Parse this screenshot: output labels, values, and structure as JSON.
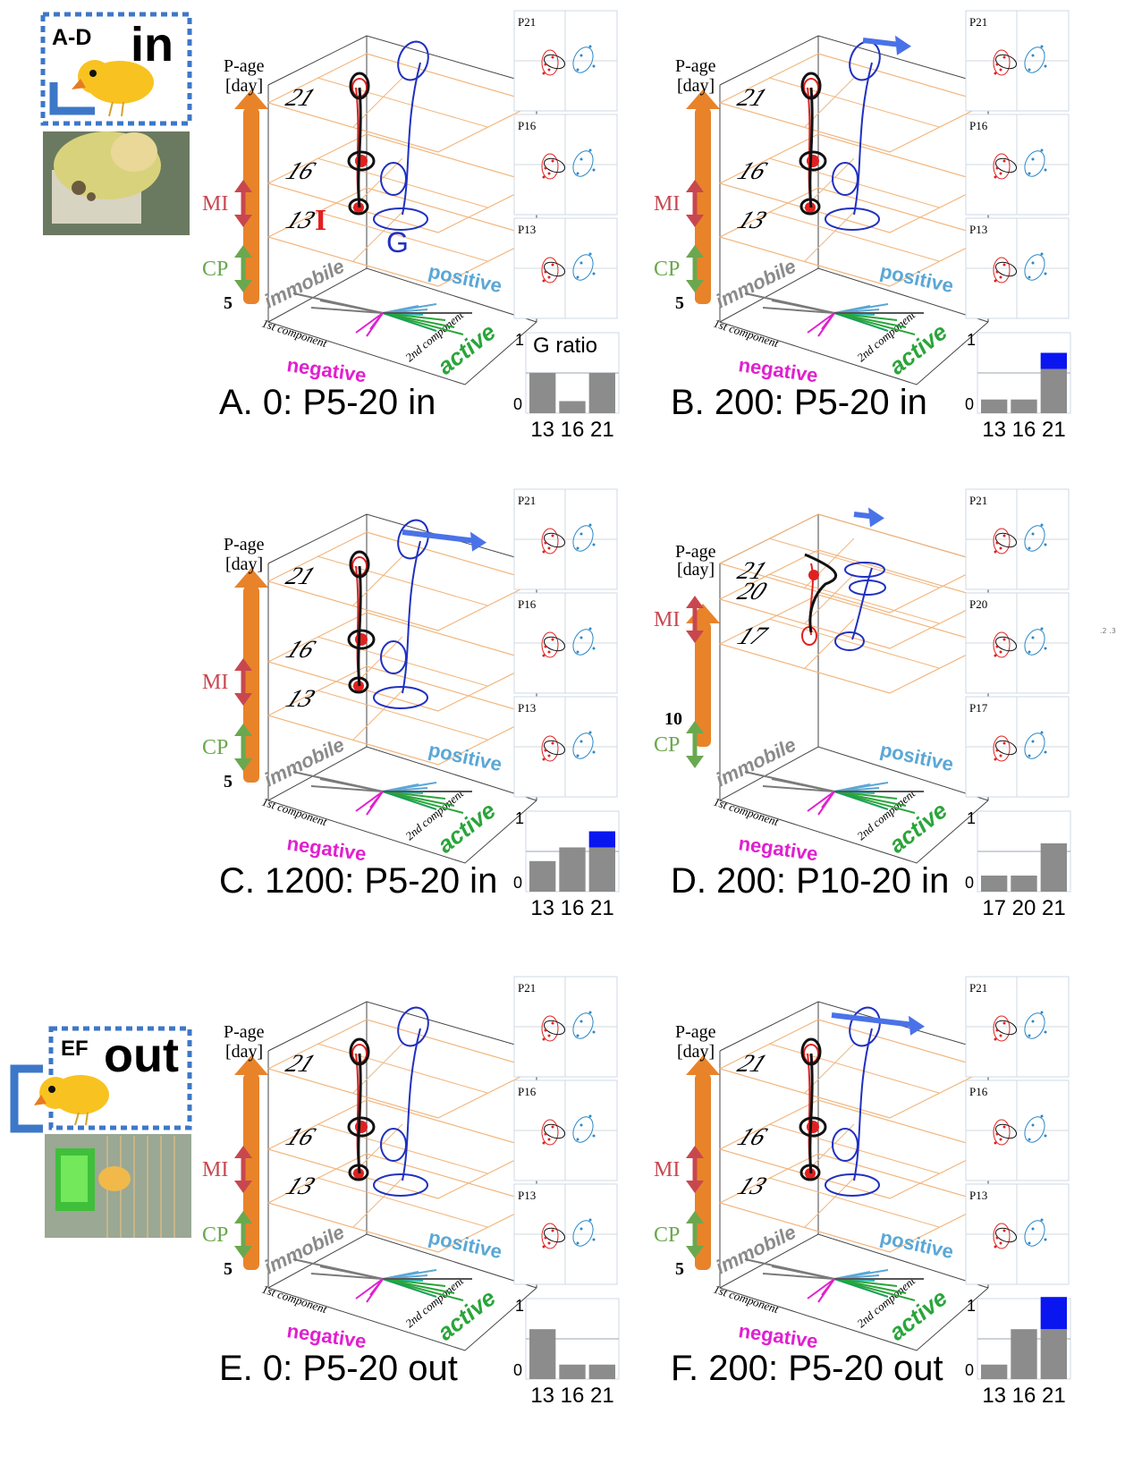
{
  "legend_in": {
    "tag": "A-D",
    "word": "in"
  },
  "legend_out": {
    "tag": "EF",
    "word": "out"
  },
  "common": {
    "page_age": "P-age",
    "day": "[day]",
    "mi": "MI",
    "cp": "CP",
    "immobile": "immobile",
    "positive": "positive",
    "negative": "negative",
    "active": "active",
    "first_component": "1st component",
    "second_component": "2nd component",
    "one": "1",
    "zero": "0",
    "g_ratio": "G ratio",
    "label_i": "I",
    "label_g": "G"
  },
  "colors": {
    "orange": "#e8832a",
    "grid": "#f2b57c",
    "individual": "#e02020",
    "group": "#2030c0",
    "trajectory": "#111111",
    "arrow": "#4a72e8",
    "positive": "#5aa7d6",
    "active": "#2aa53a",
    "negative": "#e020d0",
    "mi": "#c8474f",
    "cp": "#6aa84f",
    "bar_gray": "#8c8c8c",
    "bar_blue": "#0a16f0"
  },
  "chart_data": [
    {
      "panel": "A",
      "title": "A.   0: P5-20 in",
      "ages": [
        "21",
        "16",
        "13"
      ],
      "base_age": "5",
      "side_labels": [
        "P21",
        "P16",
        "P13"
      ],
      "type": "bar",
      "categories": [
        "13",
        "16",
        "21"
      ],
      "values": [
        0.5,
        0.15,
        0.5
      ],
      "extra": [
        0,
        0,
        0
      ],
      "ylim": [
        0,
        1
      ]
    },
    {
      "panel": "B",
      "title": "B.  200: P5-20 in",
      "ages": [
        "21",
        "16",
        "13"
      ],
      "base_age": "5",
      "side_labels": [
        "P21",
        "P16",
        "P13"
      ],
      "type": "bar",
      "categories": [
        "13",
        "16",
        "21"
      ],
      "values": [
        0.17,
        0.17,
        0.55
      ],
      "extra": [
        0,
        0,
        0.2
      ],
      "ylim": [
        0,
        1
      ]
    },
    {
      "panel": "C",
      "title": "C. 1200: P5-20 in",
      "ages": [
        "21",
        "16",
        "13"
      ],
      "base_age": "5",
      "side_labels": [
        "P21",
        "P16",
        "P13"
      ],
      "type": "bar",
      "categories": [
        "13",
        "16",
        "21"
      ],
      "values": [
        0.38,
        0.55,
        0.55
      ],
      "extra": [
        0,
        0,
        0.2
      ],
      "ylim": [
        0,
        1
      ]
    },
    {
      "panel": "D",
      "title": "D. 200: P10-20 in",
      "ages": [
        "21",
        "20",
        "17"
      ],
      "base_age": "10",
      "side_labels": [
        "P21",
        "P20",
        "P17"
      ],
      "type": "bar",
      "categories": [
        "17",
        "20",
        "21"
      ],
      "values": [
        0.2,
        0.2,
        0.6
      ],
      "extra": [
        0,
        0,
        0
      ],
      "ylim": [
        0,
        1
      ]
    },
    {
      "panel": "E",
      "title": "E.   0: P5-20 out",
      "ages": [
        "21",
        "16",
        "13"
      ],
      "base_age": "5",
      "side_labels": [
        "P21",
        "P16",
        "P13"
      ],
      "type": "bar",
      "categories": [
        "13",
        "16",
        "21"
      ],
      "values": [
        0.62,
        0.18,
        0.18
      ],
      "extra": [
        0,
        0,
        0
      ],
      "ylim": [
        0,
        1
      ]
    },
    {
      "panel": "F",
      "title": "F. 200: P5-20 out",
      "ages": [
        "21",
        "16",
        "13"
      ],
      "base_age": "5",
      "side_labels": [
        "P21",
        "P16",
        "P13"
      ],
      "type": "bar",
      "categories": [
        "13",
        "16",
        "21"
      ],
      "values": [
        0.18,
        0.62,
        0.62
      ],
      "extra": [
        0,
        0,
        0.4
      ],
      "ylim": [
        0,
        1
      ]
    }
  ]
}
